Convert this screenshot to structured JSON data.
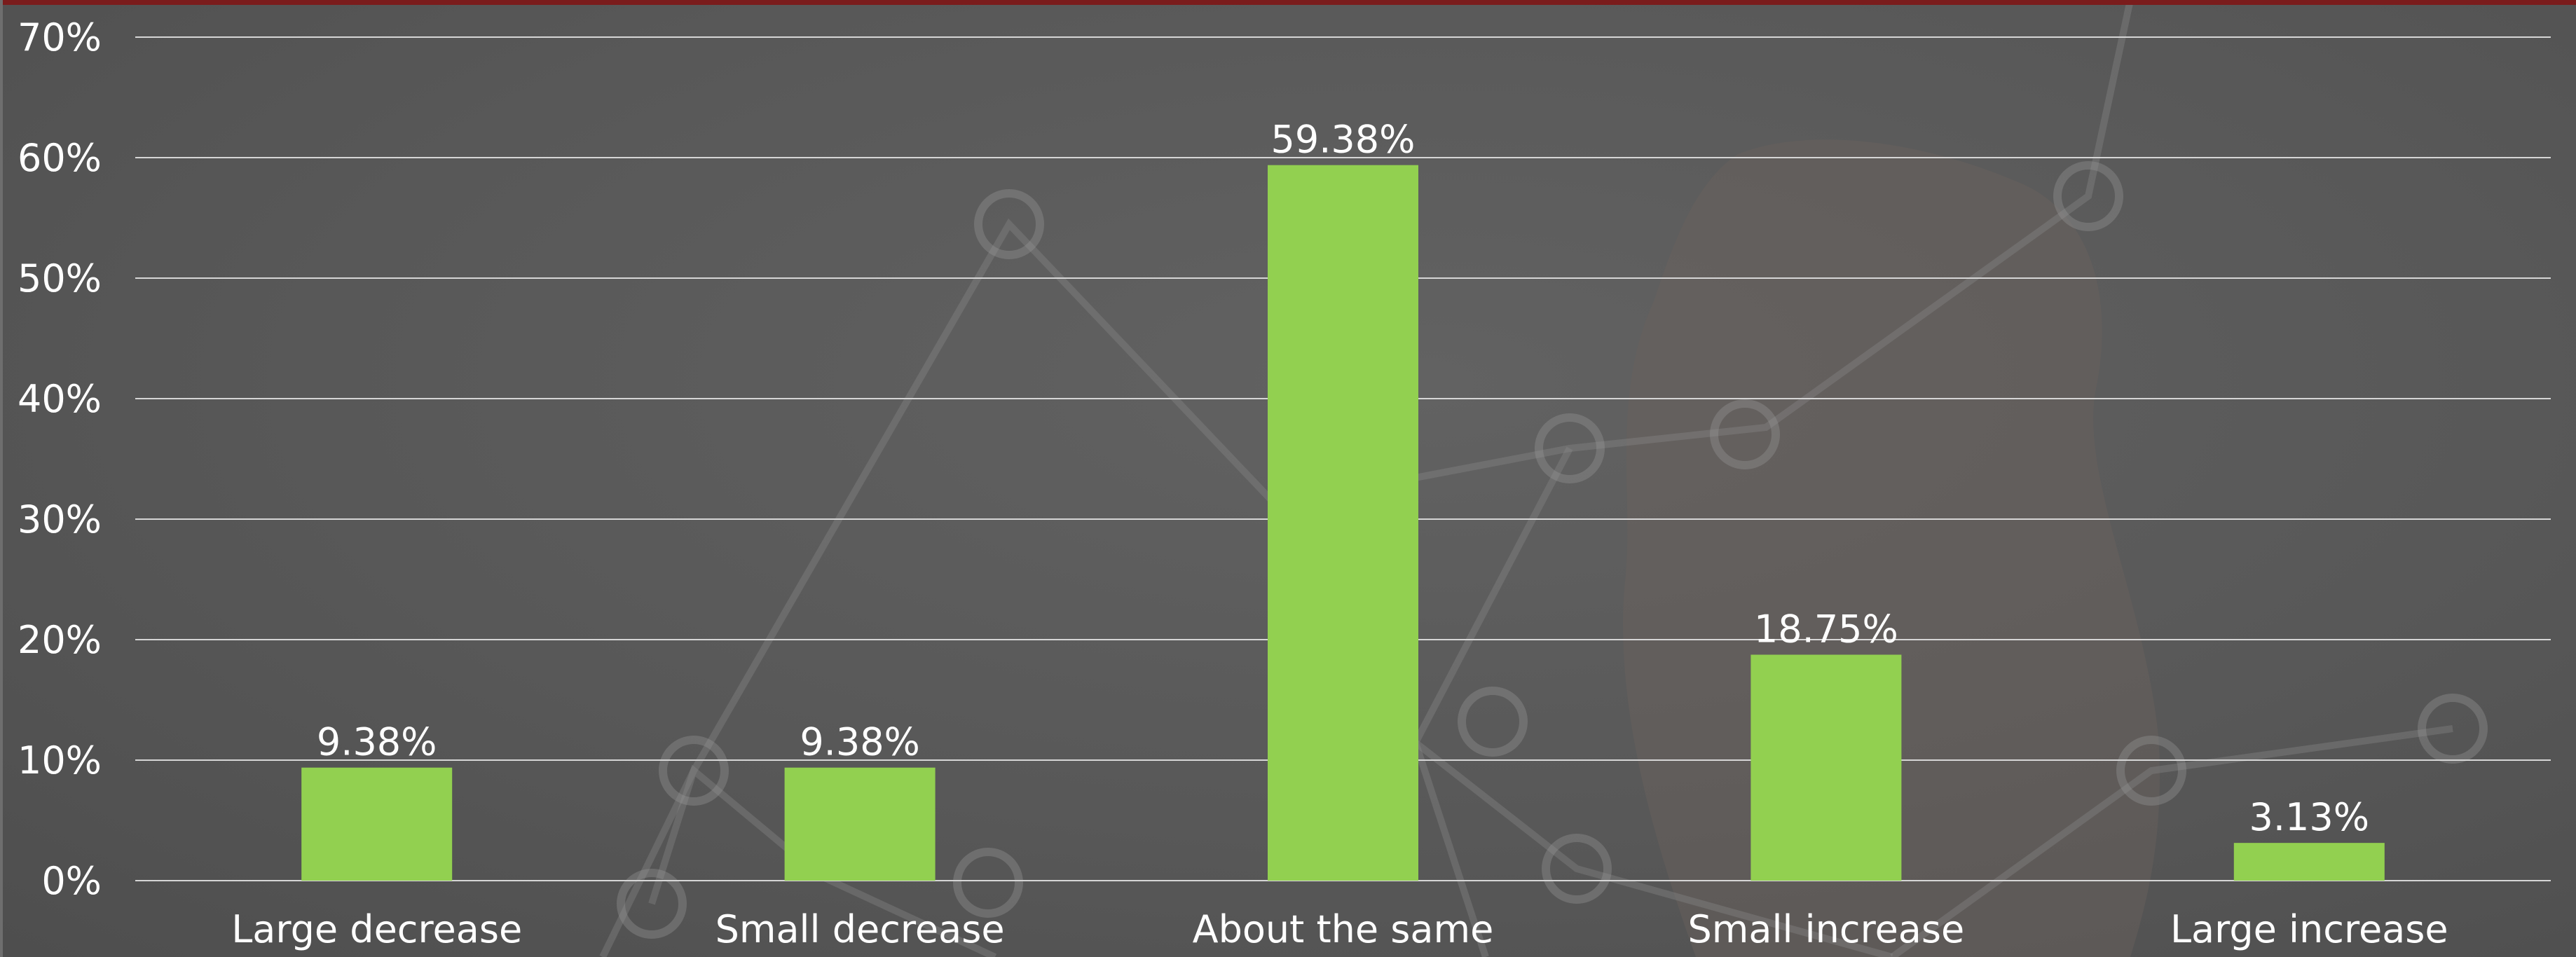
{
  "chart_data": {
    "type": "bar",
    "categories": [
      "Large decrease",
      "Small decrease",
      "About the same",
      "Small increase",
      "Large increase"
    ],
    "values": [
      9.38,
      9.38,
      59.38,
      18.75,
      3.13
    ],
    "value_labels": [
      "9.38%",
      "9.38%",
      "59.38%",
      "18.75%",
      "3.13%"
    ],
    "y_ticks": [
      0,
      10,
      20,
      30,
      40,
      50,
      60,
      70
    ],
    "y_tick_labels": [
      "0%",
      "10%",
      "20%",
      "30%",
      "40%",
      "50%",
      "60%",
      "70%"
    ],
    "ylim": [
      0,
      70
    ],
    "grid": true,
    "legend": "none",
    "bar_color": "#92d050",
    "title": "",
    "xlabel": "",
    "ylabel": ""
  }
}
